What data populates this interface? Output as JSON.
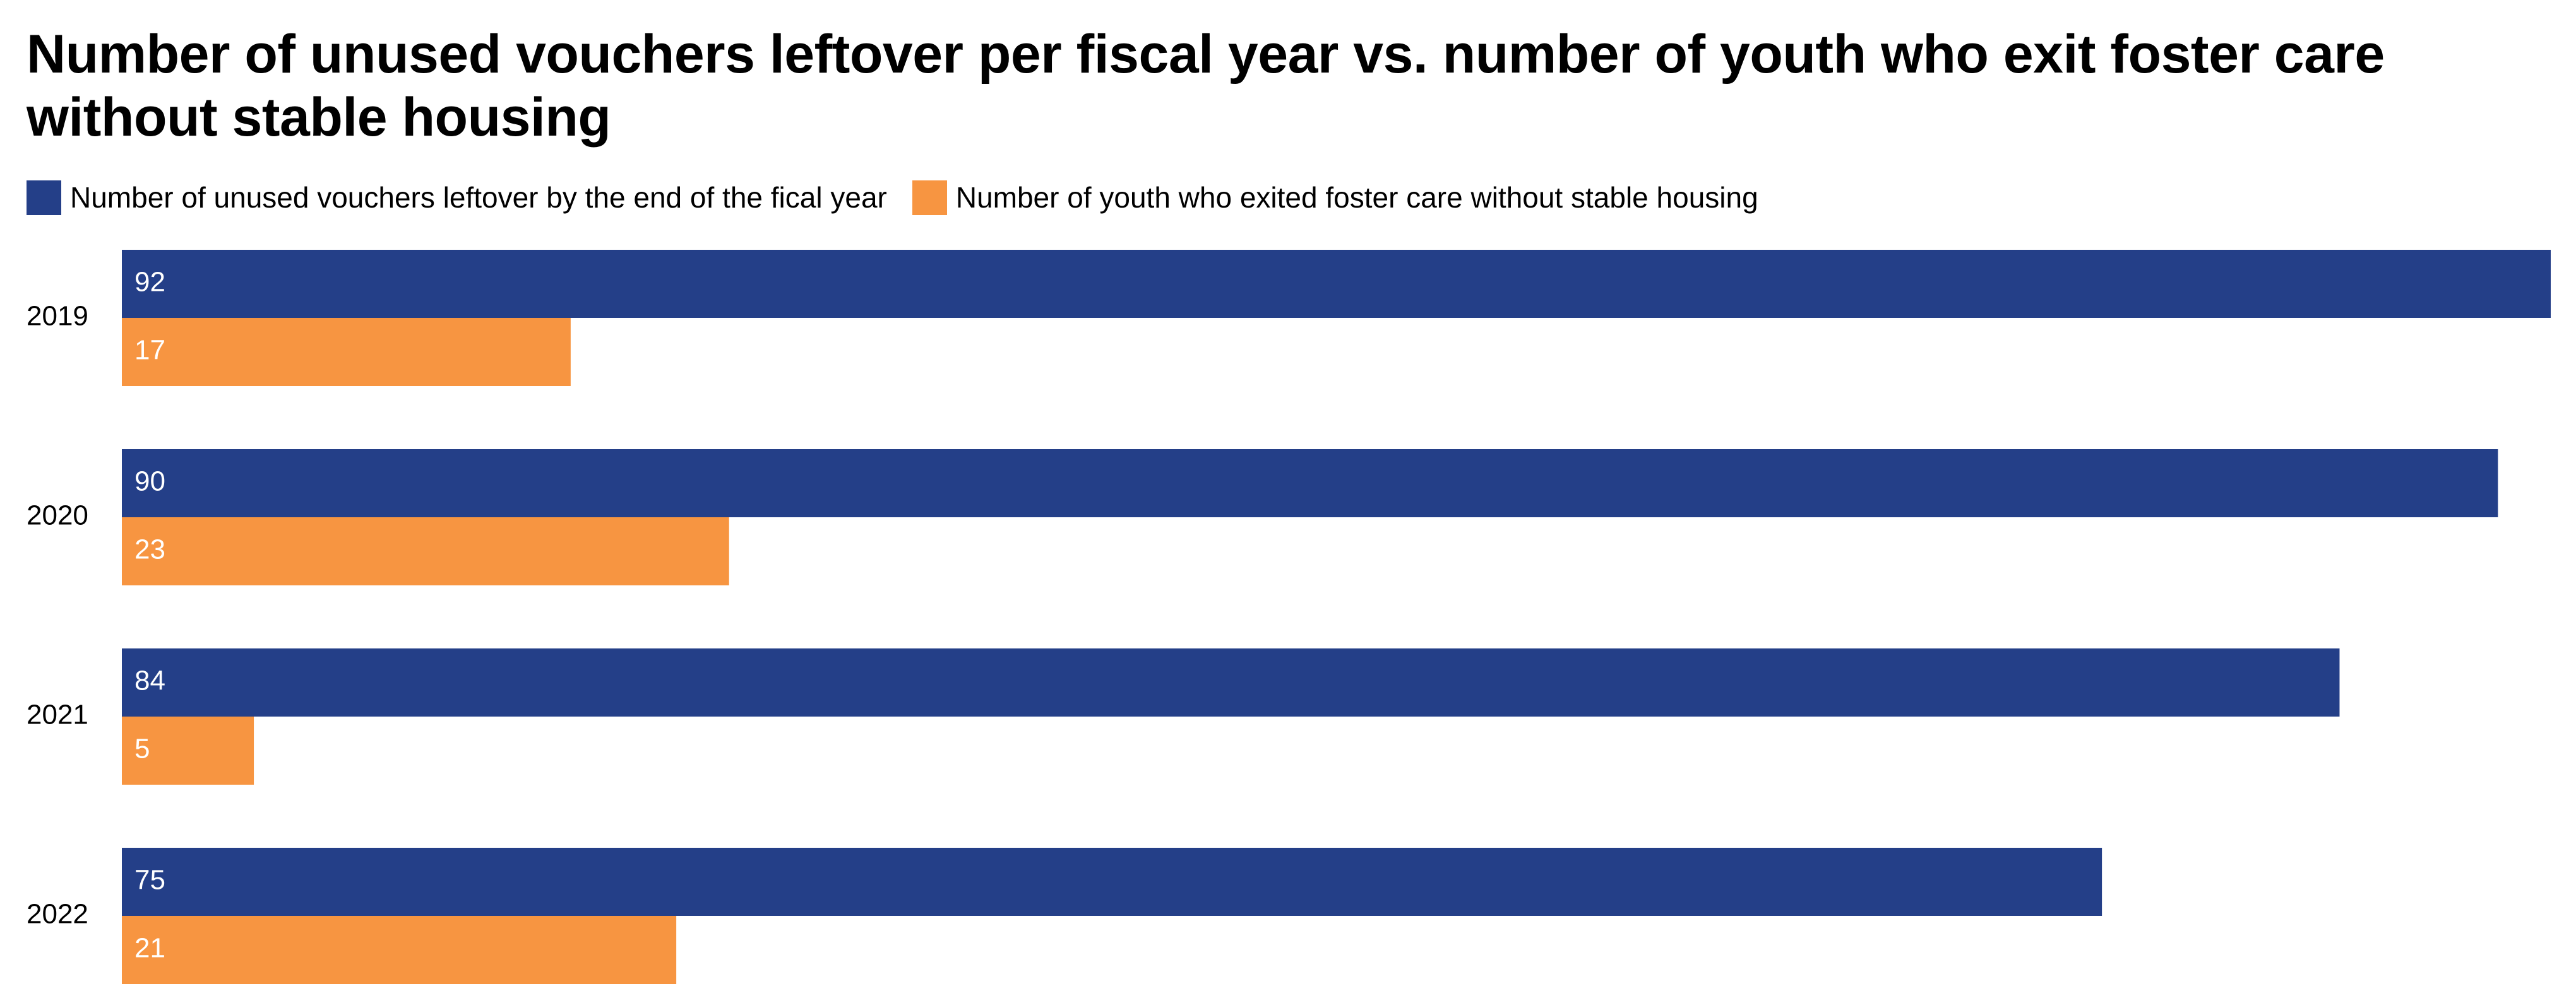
{
  "chart_data": {
    "type": "bar",
    "orientation": "horizontal",
    "title": "Number of unused vouchers leftover per fiscal year vs. number of youth who exit foster care without stable housing",
    "categories": [
      "2019",
      "2020",
      "2021",
      "2022"
    ],
    "series": [
      {
        "name": "Number of unused vouchers leftover by the end of the fical year",
        "color": "#243f88",
        "values": [
          92,
          90,
          84,
          75
        ]
      },
      {
        "name": "Number of youth who exited foster care without stable housing",
        "color": "#f79541",
        "values": [
          17,
          23,
          5,
          21
        ]
      }
    ],
    "xlim": [
      0,
      92
    ],
    "grid": false,
    "legend_position": "top-left",
    "value_labels": "inside-left"
  }
}
